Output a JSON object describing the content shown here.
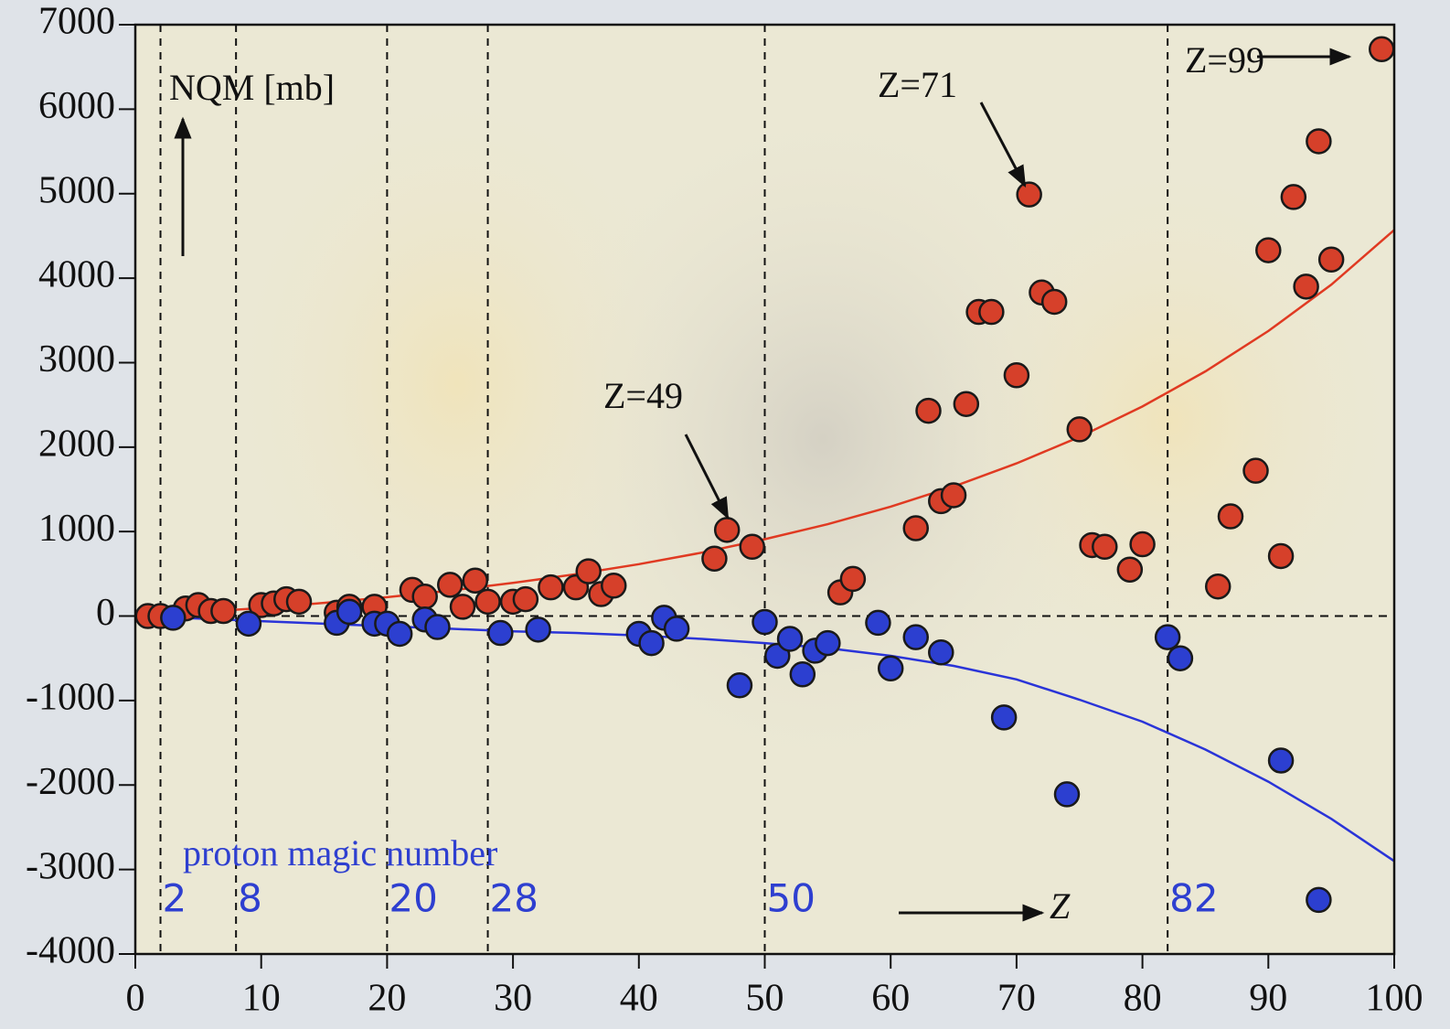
{
  "chart_data": {
    "type": "scatter",
    "ylabel": "NQM [mb]",
    "xlabel": "Z",
    "xlim": [
      0,
      100
    ],
    "ylim": [
      -4000,
      7000
    ],
    "xticks": [
      0,
      10,
      20,
      30,
      40,
      50,
      60,
      70,
      80,
      90,
      100
    ],
    "yticks": [
      -4000,
      -3000,
      -2000,
      -1000,
      0,
      1000,
      2000,
      3000,
      4000,
      5000,
      6000,
      7000
    ],
    "series": [
      {
        "color": "#d6402a",
        "x": [
          1,
          2,
          4,
          5,
          6,
          7,
          10,
          11,
          12,
          13,
          16,
          17,
          19,
          22,
          23,
          25,
          26,
          27,
          28,
          30,
          31,
          33,
          35,
          36,
          37,
          38,
          46,
          47,
          49,
          56,
          57,
          62,
          63,
          64,
          65,
          66,
          67,
          68,
          70,
          71,
          72,
          73,
          75,
          76,
          77,
          79,
          80,
          86,
          87,
          89,
          90,
          91,
          92,
          93,
          94,
          95,
          99
        ],
        "values": [
          0,
          0,
          90,
          130,
          60,
          60,
          130,
          150,
          200,
          170,
          40,
          110,
          110,
          310,
          230,
          370,
          110,
          420,
          170,
          170,
          200,
          340,
          340,
          530,
          260,
          360,
          680,
          1020,
          820,
          280,
          440,
          1040,
          2430,
          1360,
          1430,
          2510,
          3600,
          3600,
          2850,
          4990,
          3830,
          3720,
          2210,
          840,
          820,
          550,
          850,
          350,
          1180,
          1720,
          4330,
          710,
          4960,
          3900,
          5620,
          4220,
          6710
        ]
      },
      {
        "color": "#2c3fd0",
        "x": [
          3,
          9,
          16,
          17,
          19,
          20,
          21,
          23,
          24,
          29,
          32,
          40,
          41,
          42,
          43,
          48,
          50,
          51,
          52,
          53,
          54,
          55,
          59,
          60,
          62,
          64,
          69,
          74,
          82,
          83,
          91,
          94
        ],
        "values": [
          -20,
          -90,
          -80,
          50,
          -90,
          -90,
          -210,
          -40,
          -130,
          -200,
          -160,
          -210,
          -320,
          -20,
          -150,
          -820,
          -70,
          -470,
          -270,
          -690,
          -410,
          -320,
          -80,
          -620,
          -250,
          -430,
          -1200,
          -2110,
          -250,
          -500,
          -1710,
          -3360
        ]
      }
    ],
    "fits": [
      {
        "color": "#e03a22",
        "x": [
          0,
          5,
          10,
          15,
          20,
          25,
          30,
          35,
          40,
          45,
          50,
          55,
          60,
          65,
          70,
          75,
          80,
          85,
          90,
          95,
          100
        ],
        "values": [
          0,
          45,
          96,
          156,
          224,
          302,
          392,
          495,
          614,
          751,
          910,
          1088,
          1295,
          1534,
          1807,
          2120,
          2481,
          2897,
          3374,
          3922,
          4570
        ]
      },
      {
        "color": "#2a34d8",
        "x": [
          0,
          5,
          10,
          15,
          20,
          25,
          30,
          35,
          40,
          45,
          50,
          55,
          60,
          65,
          70,
          75,
          80,
          85,
          90,
          95,
          100
        ],
        "values": [
          0,
          -30,
          -60,
          -90,
          -120,
          -150,
          -180,
          -200,
          -230,
          -270,
          -320,
          -380,
          -470,
          -590,
          -750,
          -990,
          -1250,
          -1580,
          -1960,
          -2400,
          -2900
        ]
      }
    ],
    "magic_label": "proton magic number",
    "magic_numbers": [
      2,
      8,
      20,
      28,
      50,
      82
    ],
    "annotations": [
      {
        "text": "Z=49"
      },
      {
        "text": "Z=71"
      },
      {
        "text": "Z=99"
      }
    ]
  }
}
